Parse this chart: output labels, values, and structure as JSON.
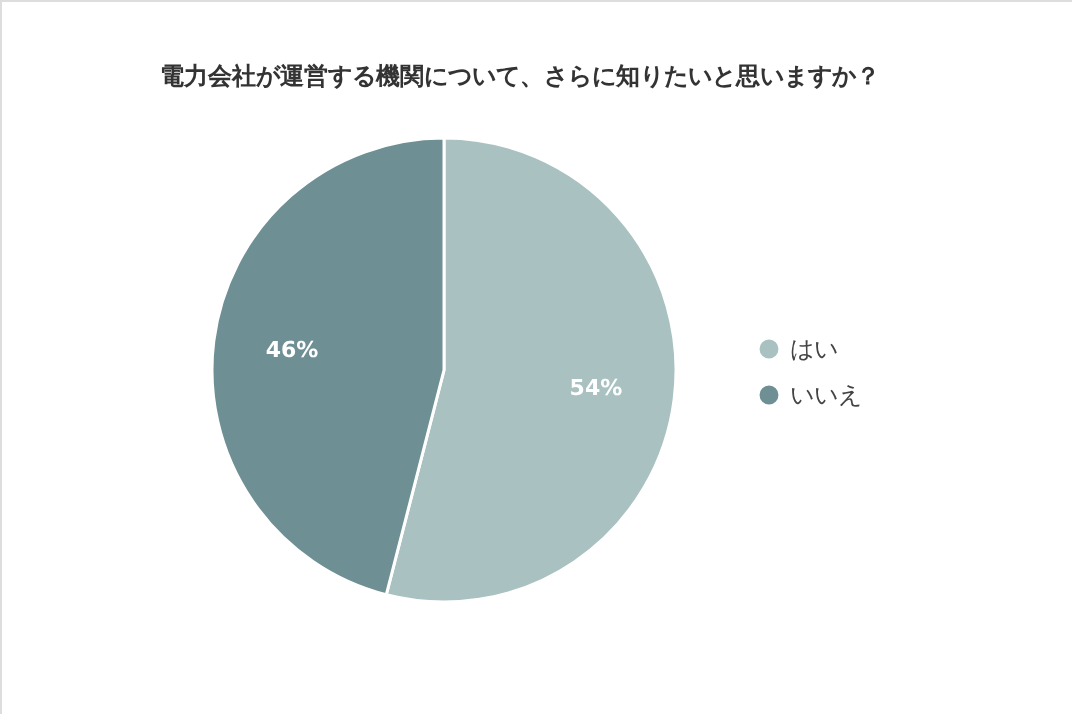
{
  "chart_data": {
    "type": "pie",
    "title": "電力会社が運営する機関について、さらに知りたいと思いますか？",
    "categories": [
      "はい",
      "いいえ"
    ],
    "values": [
      54,
      46
    ],
    "colors": [
      "#a9c1c1",
      "#6e8f93"
    ],
    "value_labels": [
      "54%",
      "46%"
    ],
    "legend": "right"
  }
}
